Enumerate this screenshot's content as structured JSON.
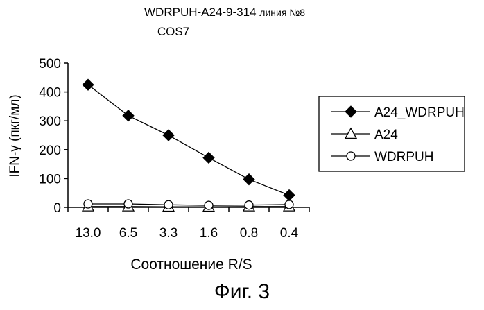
{
  "chart_data": {
    "type": "line",
    "title_main": "WDRPUH-A24-9-314",
    "title_line": "линия №8",
    "subtitle": "COS7",
    "xlabel": "Соотношение R/S",
    "ylabel": "IFN-γ (пкг/мл)",
    "categories": [
      "13.0",
      "6.5",
      "3.3",
      "1.6",
      "0.8",
      "0.4"
    ],
    "ylim": [
      0,
      500
    ],
    "yticks": [
      "0",
      "100",
      "200",
      "300",
      "400",
      "500"
    ],
    "legend_position": "right",
    "series": [
      {
        "name": "A24_WDRPUH",
        "marker": "filled-diamond",
        "values": [
          425,
          318,
          250,
          172,
          97,
          42
        ]
      },
      {
        "name": "A24",
        "marker": "open-triangle",
        "values": [
          3,
          3,
          2,
          2,
          3,
          3
        ]
      },
      {
        "name": "WDRPUH",
        "marker": "open-circle",
        "values": [
          12,
          12,
          9,
          7,
          8,
          10
        ]
      }
    ]
  },
  "figure_caption": "Фиг. 3"
}
